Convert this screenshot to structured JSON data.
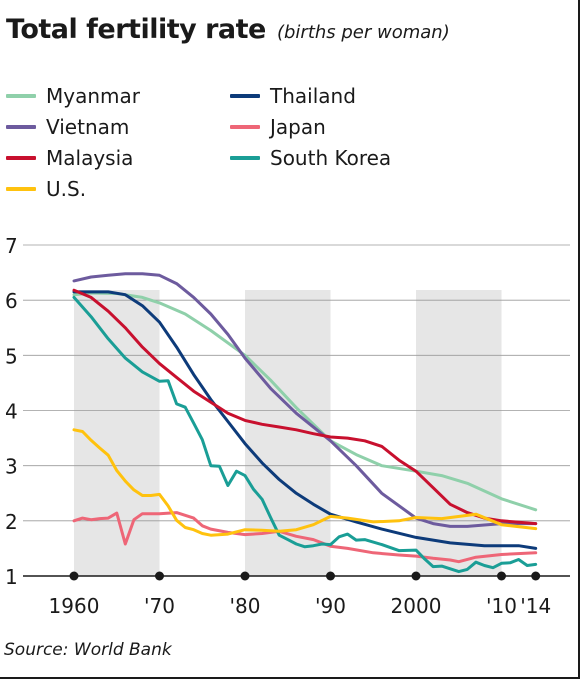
{
  "header": {
    "title": "Total fertility rate",
    "subtitle": "(births per woman)"
  },
  "source": "Source: World Bank",
  "chart_data": {
    "type": "line",
    "title": "Total fertility rate",
    "subtitle": "(births per woman)",
    "xlabel": "",
    "ylabel": "",
    "xlim": [
      1958,
      2017
    ],
    "ylim": [
      1,
      7
    ],
    "y_ticks": [
      1,
      2,
      3,
      4,
      5,
      6,
      7
    ],
    "x_ticks": [
      {
        "value": 1960,
        "label": "1960"
      },
      {
        "value": 1970,
        "label": "'70"
      },
      {
        "value": 1980,
        "label": "'80"
      },
      {
        "value": 1990,
        "label": "'90"
      },
      {
        "value": 2000,
        "label": "2000"
      },
      {
        "value": 2010,
        "label": "'10"
      },
      {
        "value": 2014,
        "label": "'14"
      }
    ],
    "shaded_ranges": [
      [
        1960,
        1970
      ],
      [
        1980,
        1990
      ],
      [
        2000,
        2010
      ]
    ],
    "grid": "horizontal",
    "legend_position": "top-left",
    "series": [
      {
        "name": "Myanmar",
        "color": "#8fd0aa",
        "x": [
          1960,
          1962,
          1965,
          1968,
          1970,
          1973,
          1976,
          1980,
          1983,
          1986,
          1990,
          1993,
          1996,
          2000,
          2003,
          2006,
          2010,
          2014
        ],
        "y": [
          6.1,
          6.13,
          6.12,
          6.05,
          5.95,
          5.75,
          5.45,
          5.0,
          4.55,
          4.05,
          3.45,
          3.2,
          3.0,
          2.9,
          2.82,
          2.68,
          2.4,
          2.2
        ]
      },
      {
        "name": "Thailand",
        "color": "#0d3b7a",
        "x": [
          1960,
          1962,
          1964,
          1966,
          1968,
          1970,
          1972,
          1974,
          1976,
          1978,
          1980,
          1982,
          1984,
          1986,
          1988,
          1990,
          1993,
          1996,
          2000,
          2004,
          2008,
          2012,
          2014
        ],
        "y": [
          6.15,
          6.15,
          6.15,
          6.1,
          5.9,
          5.6,
          5.15,
          4.65,
          4.2,
          3.8,
          3.4,
          3.05,
          2.75,
          2.5,
          2.3,
          2.12,
          1.98,
          1.85,
          1.7,
          1.6,
          1.55,
          1.55,
          1.5
        ]
      },
      {
        "name": "Vietnam",
        "color": "#6d5b9e",
        "x": [
          1960,
          1962,
          1964,
          1966,
          1968,
          1970,
          1972,
          1974,
          1976,
          1978,
          1980,
          1983,
          1986,
          1990,
          1993,
          1996,
          2000,
          2002,
          2004,
          2006,
          2010,
          2014
        ],
        "y": [
          6.35,
          6.42,
          6.45,
          6.48,
          6.48,
          6.45,
          6.3,
          6.05,
          5.75,
          5.38,
          4.95,
          4.4,
          3.95,
          3.45,
          3.0,
          2.5,
          2.05,
          1.95,
          1.9,
          1.9,
          1.95,
          1.95
        ]
      },
      {
        "name": "Japan",
        "color": "#ee6677",
        "x": [
          1960,
          1961,
          1962,
          1963,
          1964,
          1965,
          1966,
          1967,
          1968,
          1970,
          1972,
          1974,
          1975,
          1976,
          1978,
          1980,
          1982,
          1984,
          1986,
          1988,
          1990,
          1992,
          1995,
          1998,
          2000,
          2002,
          2004,
          2005,
          2007,
          2010,
          2014
        ],
        "y": [
          2.0,
          2.05,
          2.02,
          2.04,
          2.05,
          2.14,
          1.58,
          2.02,
          2.13,
          2.13,
          2.15,
          2.05,
          1.91,
          1.85,
          1.79,
          1.75,
          1.77,
          1.81,
          1.72,
          1.66,
          1.54,
          1.5,
          1.42,
          1.38,
          1.36,
          1.32,
          1.29,
          1.26,
          1.34,
          1.39,
          1.42
        ]
      },
      {
        "name": "Malaysia",
        "color": "#c8102e",
        "x": [
          1960,
          1962,
          1964,
          1966,
          1968,
          1970,
          1972,
          1974,
          1976,
          1978,
          1980,
          1982,
          1984,
          1986,
          1988,
          1990,
          1992,
          1994,
          1996,
          1998,
          2000,
          2002,
          2004,
          2006,
          2008,
          2010,
          2014
        ],
        "y": [
          6.18,
          6.05,
          5.8,
          5.5,
          5.15,
          4.85,
          4.6,
          4.35,
          4.15,
          3.95,
          3.82,
          3.75,
          3.7,
          3.65,
          3.58,
          3.52,
          3.5,
          3.45,
          3.35,
          3.1,
          2.9,
          2.6,
          2.3,
          2.15,
          2.05,
          2.0,
          1.95
        ]
      },
      {
        "name": "South Korea",
        "color": "#1a9e96",
        "x": [
          1960,
          1962,
          1964,
          1966,
          1968,
          1970,
          1971,
          1972,
          1973,
          1974,
          1975,
          1976,
          1977,
          1978,
          1979,
          1980,
          1981,
          1982,
          1983,
          1984,
          1985,
          1986,
          1987,
          1988,
          1989,
          1990,
          1991,
          1992,
          1993,
          1994,
          1996,
          1998,
          2000,
          2001,
          2002,
          2003,
          2005,
          2006,
          2007,
          2008,
          2009,
          2010,
          2011,
          2012,
          2013,
          2014
        ],
        "y": [
          6.05,
          5.7,
          5.3,
          4.95,
          4.7,
          4.53,
          4.54,
          4.12,
          4.06,
          3.77,
          3.47,
          3.0,
          2.99,
          2.64,
          2.9,
          2.82,
          2.57,
          2.39,
          2.06,
          1.74,
          1.66,
          1.58,
          1.53,
          1.55,
          1.58,
          1.57,
          1.71,
          1.76,
          1.65,
          1.66,
          1.57,
          1.46,
          1.47,
          1.31,
          1.17,
          1.18,
          1.08,
          1.12,
          1.25,
          1.19,
          1.15,
          1.23,
          1.24,
          1.3,
          1.19,
          1.21
        ]
      },
      {
        "name": "U.S.",
        "color": "#ffc20e",
        "x": [
          1960,
          1961,
          1962,
          1963,
          1964,
          1965,
          1966,
          1967,
          1968,
          1969,
          1970,
          1971,
          1972,
          1973,
          1974,
          1975,
          1976,
          1978,
          1980,
          1982,
          1984,
          1986,
          1988,
          1990,
          1992,
          1995,
          1998,
          2000,
          2003,
          2007,
          2010,
          2014
        ],
        "y": [
          3.65,
          3.62,
          3.46,
          3.32,
          3.19,
          2.91,
          2.72,
          2.56,
          2.46,
          2.46,
          2.48,
          2.27,
          2.01,
          1.88,
          1.84,
          1.77,
          1.74,
          1.76,
          1.84,
          1.83,
          1.81,
          1.84,
          1.93,
          2.08,
          2.05,
          1.98,
          2.0,
          2.06,
          2.04,
          2.12,
          1.93,
          1.86
        ]
      }
    ]
  }
}
